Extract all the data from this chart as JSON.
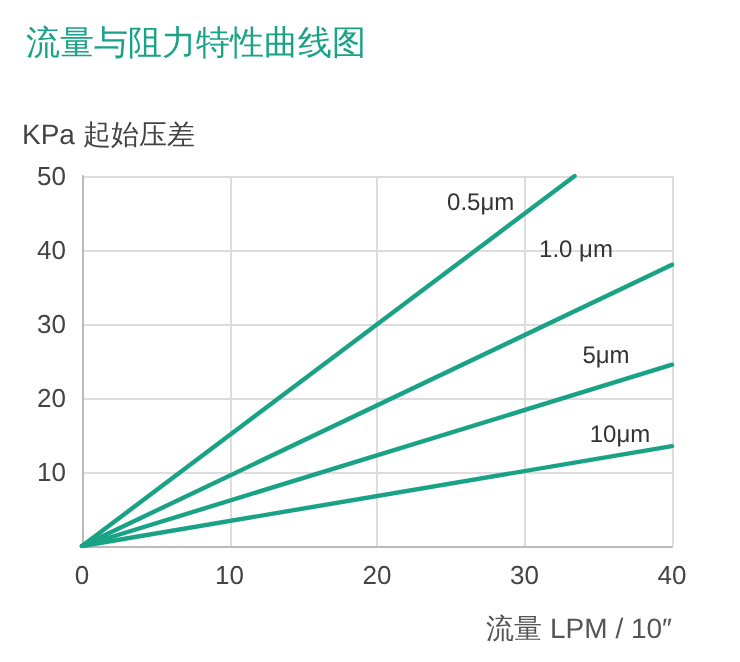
{
  "chart_data": {
    "type": "line",
    "title": "流量与阻力特性曲线图",
    "ylabel": "KPa 起始压差",
    "xlabel": "流量 LPM / 10″",
    "series": [
      {
        "name": "0.5μm",
        "color": "#19a286",
        "x": [
          0,
          33.4
        ],
        "values": [
          0,
          50
        ]
      },
      {
        "name": "1.0 μm",
        "color": "#19a286",
        "x": [
          0,
          40
        ],
        "values": [
          0,
          38
        ]
      },
      {
        "name": "5μm",
        "color": "#19a286",
        "x": [
          0,
          40
        ],
        "values": [
          0,
          24.5
        ]
      },
      {
        "name": "10μm",
        "color": "#19a286",
        "x": [
          0,
          40
        ],
        "values": [
          0,
          13.5
        ]
      }
    ],
    "xlim": [
      0,
      40
    ],
    "xticks": [
      0,
      10,
      20,
      30,
      40
    ],
    "ylim": [
      0,
      50
    ],
    "yticks": [
      {
        "value": 0,
        "label": null
      },
      10,
      20,
      30,
      40,
      50
    ],
    "grid": true,
    "legend": false,
    "marker": "none",
    "line_style": "solid"
  }
}
